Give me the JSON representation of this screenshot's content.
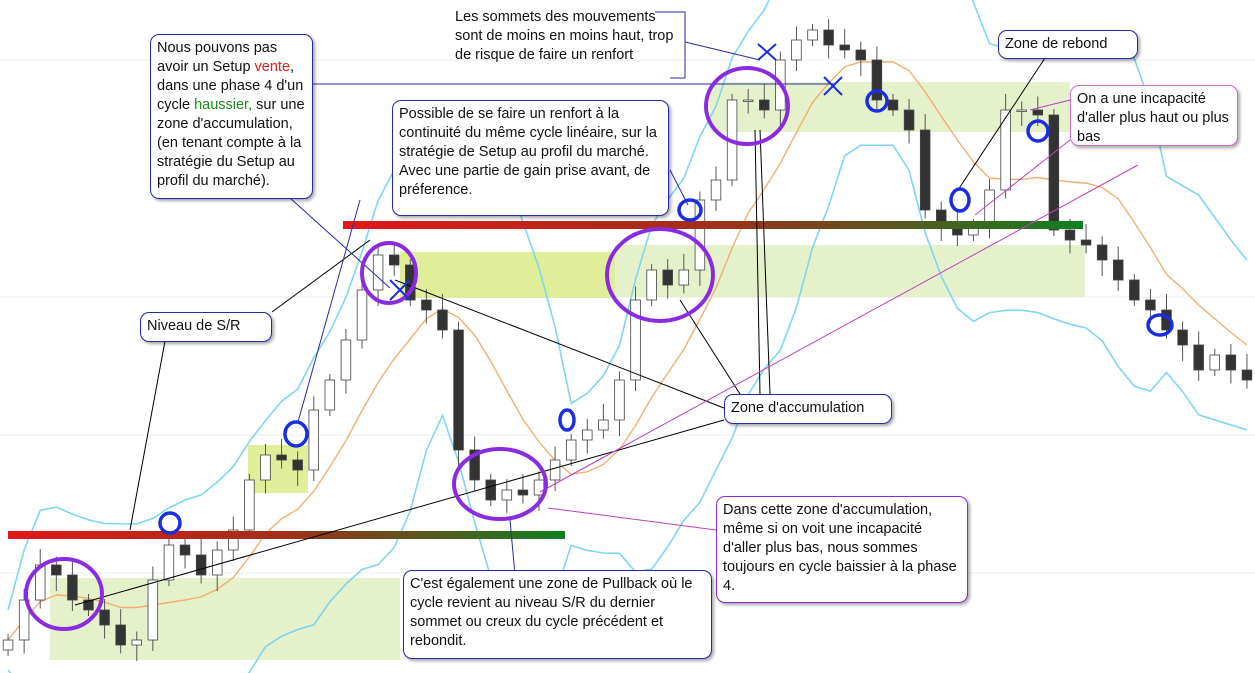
{
  "chart_data": {
    "type": "candlestick",
    "title": "",
    "xlabel": "",
    "ylabel": "",
    "grid": true,
    "indicators": [
      "bollinger-upper",
      "bollinger-middle",
      "bollinger-lower"
    ],
    "closes": [
      3.3,
      7.3,
      10.8,
      9.8,
      7.3,
      6.3,
      4.8,
      2.8,
      3.3,
      9.3,
      12.8,
      11.8,
      9.8,
      12.3,
      14.3,
      19.3,
      21.8,
      21.3,
      20.3,
      26.3,
      29.3,
      33.3,
      38.3,
      41.8,
      40.8,
      37.3,
      36.3,
      34.3,
      22.3,
      19.3,
      17.3,
      18.3,
      17.8,
      19.3,
      21.3,
      23.3,
      24.3,
      25.3,
      29.3,
      37.3,
      40.3,
      38.8,
      40.3,
      47.3,
      49.3,
      57.3,
      57.3,
      56.3,
      61.3,
      63.3,
      64.3,
      62.8,
      62.3,
      61.3,
      57.3,
      56.3,
      54.3,
      46.3,
      44.8,
      43.8,
      44.8,
      48.3,
      56.3,
      56.3,
      55.8,
      44.3,
      43.3,
      42.8,
      41.3,
      39.3,
      37.3,
      36.3,
      34.3,
      32.8,
      30.3,
      31.8,
      30.3,
      29.3
    ],
    "ylim": [
      0,
      67.3
    ]
  },
  "colors": {
    "zone": "#d4e8a8",
    "zone_strong": "#d8ea80",
    "circle": "#1a2ee0",
    "ellipse": "#8a2be2",
    "band_outer": "#7fd6f0",
    "band_mid": "#f0b070",
    "sr_start": "#e01818",
    "sr_end": "#108020"
  },
  "callouts": {
    "setup": {
      "t1": "Nous pouvons pas avoir un Setup ",
      "red": "vente",
      "t2": ", dans une phase 4 d'un cycle ",
      "green": "haussier,",
      "t3": " sur une zone d'accumulation, (en tenant compte à la stratégie du Setup au profil du marché)."
    },
    "sommets": "Les sommets des mouvements sont de moins en moins haut, trop de risque de faire un renfort",
    "renfort": "Possible de se faire un renfort à la continuité du même cycle linéaire, sur la stratégie de Setup au profil du marché. Avec une partie de gain prise avant, de préference.",
    "rebond": "Zone de rebond",
    "incapacite": "On a une incapacité d'aller plus haut ou plus bas",
    "niveau": "Niveau de S/R",
    "accumulation": "Zone d'accumulation",
    "baissier": "Dans cette zone d'accumulation, même si on voit une incapacité d'aller plus bas, nous sommes toujours en cycle baissier à la phase 4.",
    "pullback": "C'est également une zone de Pullback où le cycle revient au niveau S/R du dernier sommet ou creux du cycle précédent et rebondit."
  }
}
